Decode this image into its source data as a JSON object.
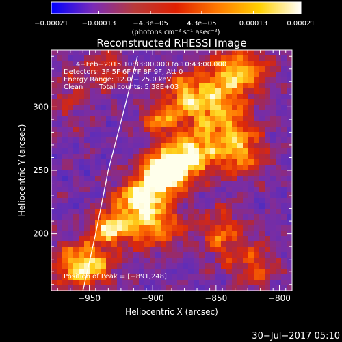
{
  "chart_data": {
    "type": "heatmap",
    "title": "Reconstructed RHESSI Image",
    "xlabel": "Heliocentric X (arcsec)",
    "ylabel": "Heliocentric Y (arcsec)",
    "xlim": [
      -980,
      -790
    ],
    "ylim": [
      155,
      345
    ],
    "x_ticks": [
      -950,
      -900,
      -850,
      -800
    ],
    "x_tick_labels": [
      "−950",
      "−900",
      "−850",
      "−800"
    ],
    "y_ticks": [
      200,
      250,
      300
    ],
    "y_tick_labels": [
      "200",
      "250",
      "300"
    ],
    "colorbar": {
      "range": [
        -0.00021,
        0.00021
      ],
      "ticks": [
        -0.00021,
        -0.00013,
        -4.3e-05,
        4.3e-05,
        0.00013,
        0.00021
      ],
      "tick_labels": [
        "−0.00021",
        "−0.00013",
        "−4.3e−05",
        "4.3e−05",
        "0.00013",
        "0.00021"
      ],
      "units": "(photons cm⁻² s⁻¹ asec⁻²)",
      "colors": [
        "#0000ff",
        "#7a2bb8",
        "#b83a3a",
        "#e02000",
        "#ff7a00",
        "#ffd000",
        "#ffffff"
      ]
    },
    "annotations": {
      "time_range": "4−Feb−2015 10:33:00.000 to 10:43:00.000",
      "detectors": "Detectors: 3F 5F 6F 7F 8F 9F, Att 0",
      "energy_range": "Energy Range: 12.0 − 25.0 keV",
      "algorithm": "Clean",
      "total_counts": "Total counts: 5.38E+03",
      "peak_position": "Position of Peak = [−891,248]"
    },
    "peak": [
      -891,
      248
    ],
    "limb_curve": [
      [
        -955,
        155
      ],
      [
        -945,
        200
      ],
      [
        -935,
        250
      ],
      [
        -922,
        300
      ],
      [
        -912,
        340
      ]
    ],
    "sources": [
      {
        "x": -891,
        "y": 248,
        "sx": 12,
        "sy": 10,
        "amp": 1.0
      },
      {
        "x": -870,
        "y": 262,
        "sx": 14,
        "sy": 12,
        "amp": 0.6
      },
      {
        "x": -910,
        "y": 228,
        "sx": 14,
        "sy": 10,
        "amp": 0.65
      },
      {
        "x": -935,
        "y": 205,
        "sx": 10,
        "sy": 9,
        "amp": 0.55
      },
      {
        "x": -955,
        "y": 175,
        "sx": 16,
        "sy": 12,
        "amp": 0.65
      },
      {
        "x": -850,
        "y": 300,
        "sx": 18,
        "sy": 20,
        "amp": 0.5
      },
      {
        "x": -830,
        "y": 330,
        "sx": 16,
        "sy": 12,
        "amp": 0.45
      },
      {
        "x": -830,
        "y": 265,
        "sx": 14,
        "sy": 14,
        "amp": 0.45
      },
      {
        "x": -900,
        "y": 205,
        "sx": 18,
        "sy": 12,
        "amp": 0.5
      },
      {
        "x": -875,
        "y": 310,
        "sx": 12,
        "sy": 12,
        "amp": 0.35
      },
      {
        "x": -895,
        "y": 290,
        "sx": 10,
        "sy": 10,
        "amp": 0.4
      },
      {
        "x": -845,
        "y": 200,
        "sx": 12,
        "sy": 14,
        "amp": 0.35
      },
      {
        "x": -965,
        "y": 310,
        "sx": 14,
        "sy": 16,
        "amp": 0.2
      },
      {
        "x": -820,
        "y": 175,
        "sx": 14,
        "sy": 14,
        "amp": 0.3
      },
      {
        "x": -935,
        "y": 330,
        "sx": 10,
        "sy": 10,
        "amp": 0.3
      }
    ]
  },
  "footer": {
    "date_stamp": "30−Jul−2017 05:10"
  }
}
